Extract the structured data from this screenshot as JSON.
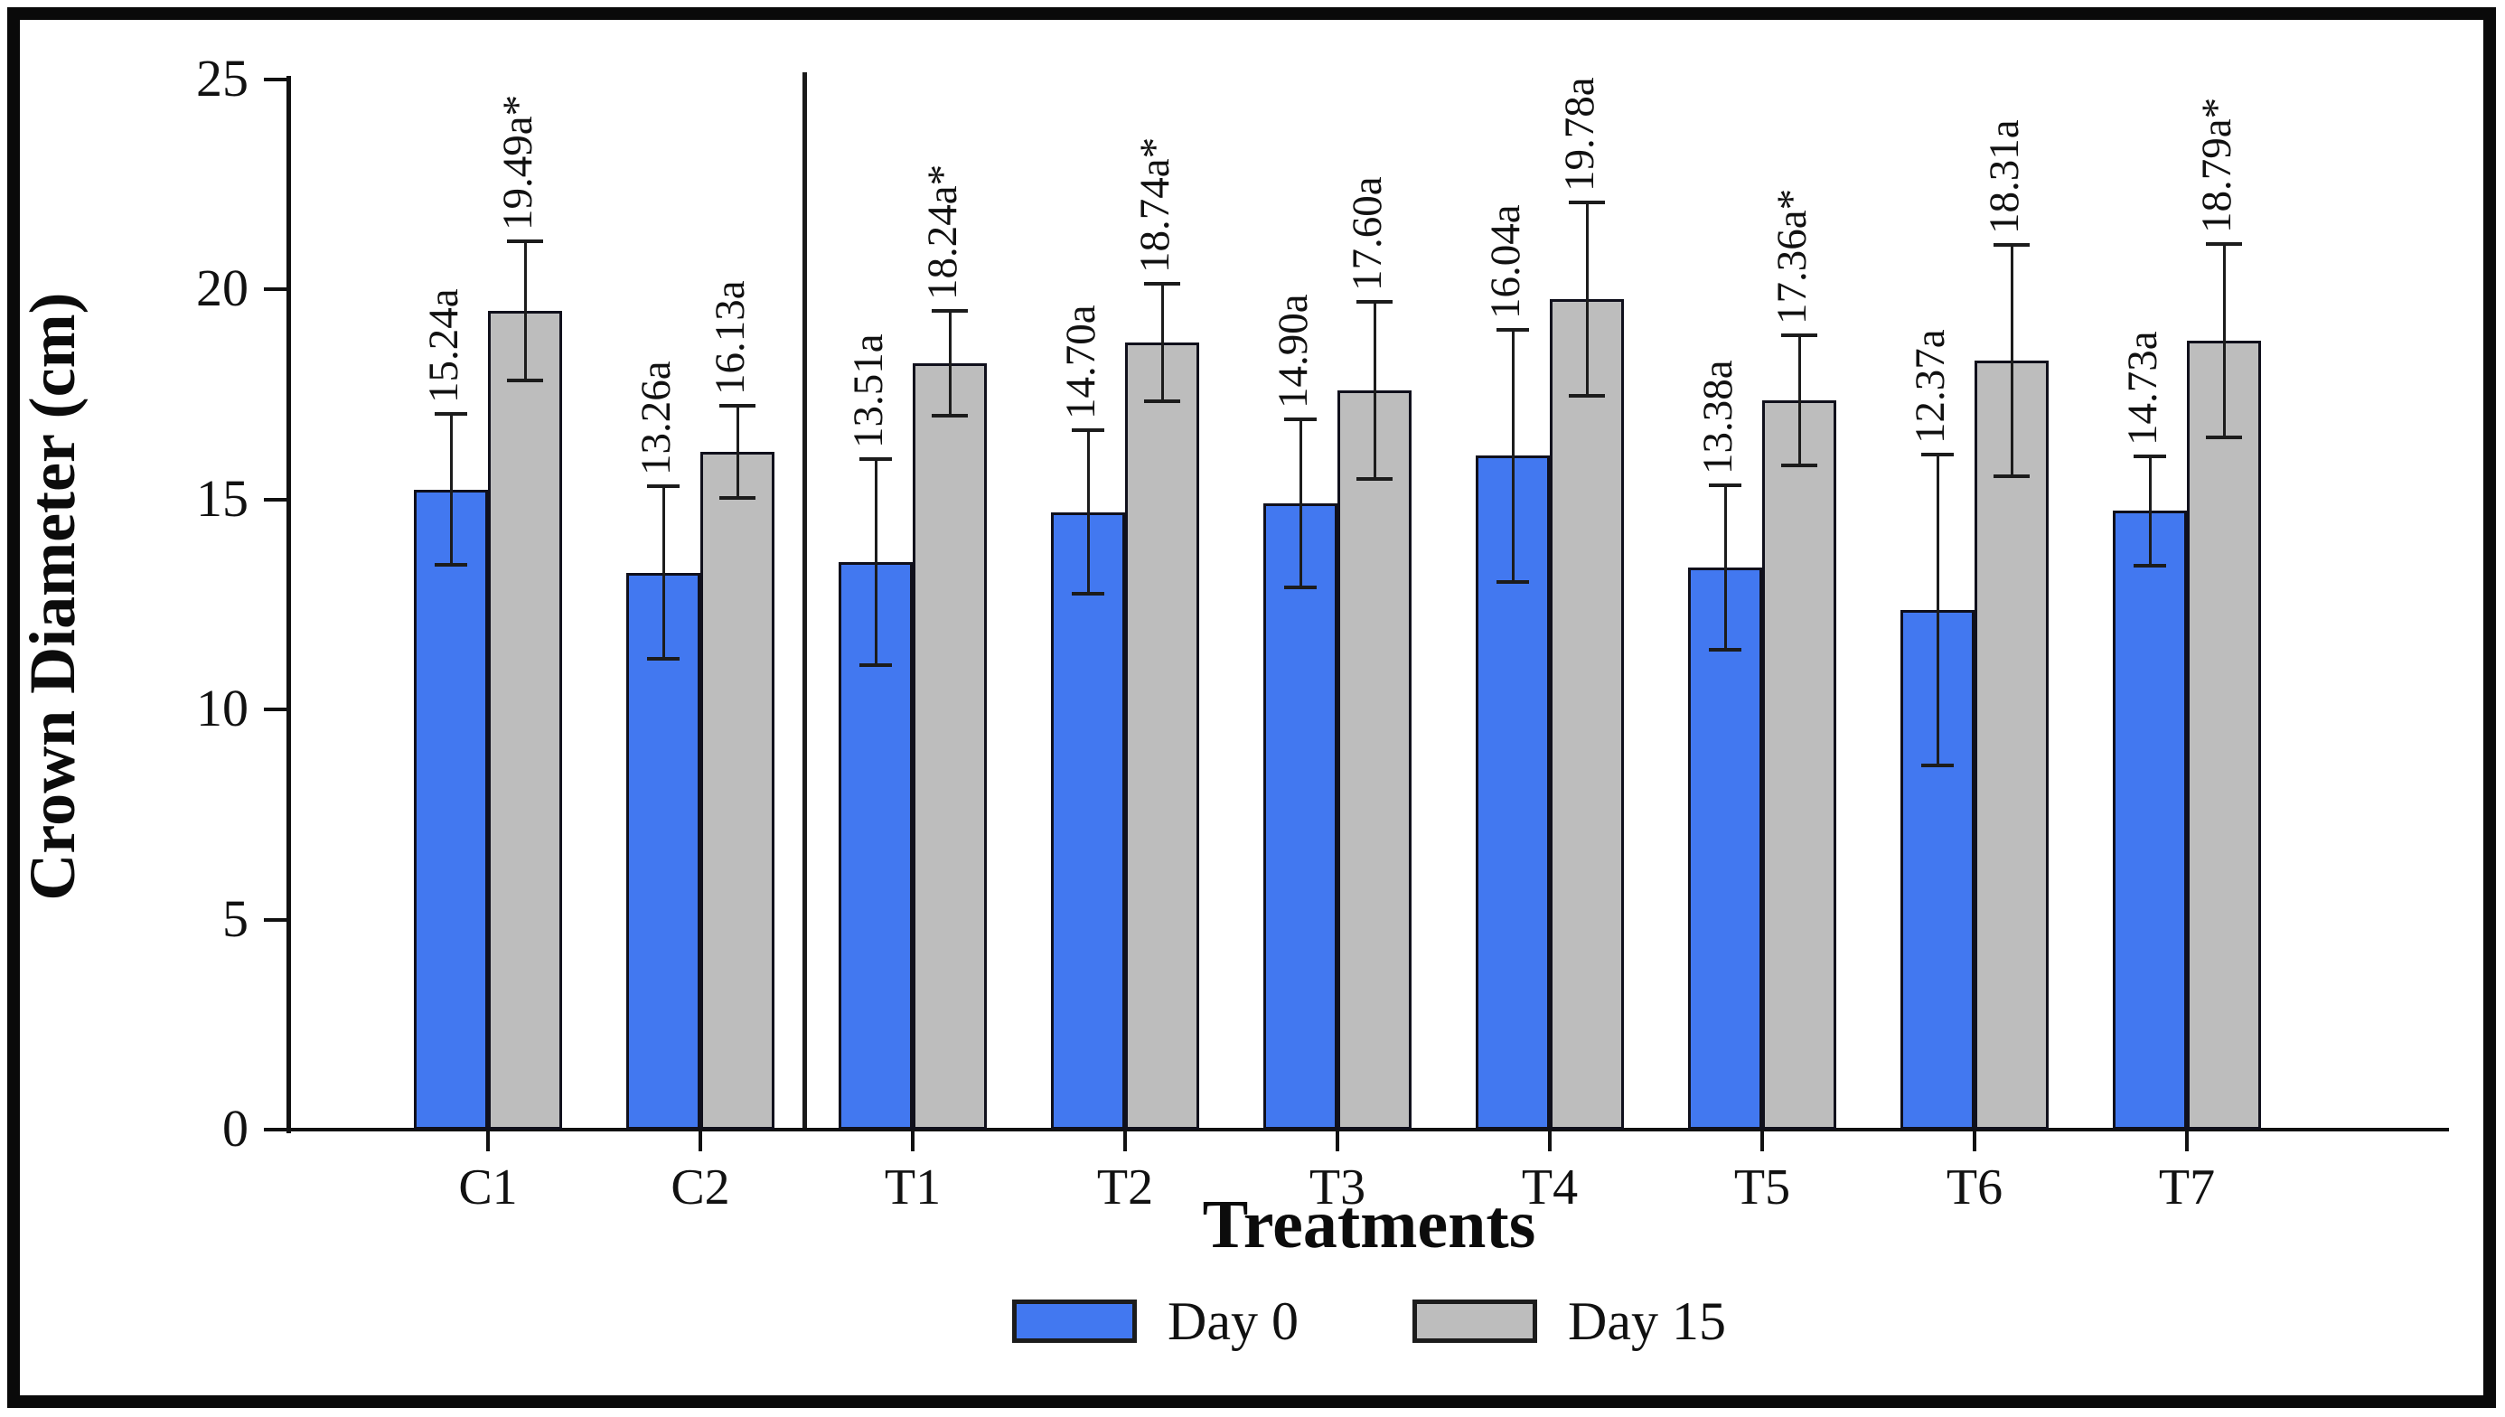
{
  "figure": {
    "y_axis_title": "Crown Diameter (cm)",
    "x_axis_title": "Treatments",
    "frame_color": "#0a0a0a",
    "axis_color": "#111111"
  },
  "chart_data": {
    "type": "bar",
    "title": "",
    "xlabel": "Treatments",
    "ylabel": "Crown Diameter (cm)",
    "ylim": [
      0,
      25
    ],
    "yticks": [
      0,
      5,
      10,
      15,
      20,
      25
    ],
    "grid": false,
    "legend_position": "bottom",
    "group_divider_after_category": "C2",
    "categories": [
      "C1",
      "C2",
      "T1",
      "T2",
      "T3",
      "T4",
      "T5",
      "T6",
      "T7"
    ],
    "series": [
      {
        "name": "Day 0",
        "color": "#4278f0",
        "values": [
          15.24,
          13.26,
          13.51,
          14.7,
          14.9,
          16.04,
          13.38,
          12.37,
          14.73
        ],
        "errors": [
          1.8,
          2.05,
          2.45,
          1.95,
          2.0,
          3.0,
          1.95,
          3.7,
          1.3
        ],
        "point_labels": [
          "15.24a",
          "13.26a",
          "13.51a",
          "14.70a",
          "14.90a",
          "16.04a",
          "13.38a",
          "12.37a",
          "14.73a"
        ]
      },
      {
        "name": "Day 15",
        "color": "#bdbdbd",
        "values": [
          19.49,
          16.13,
          18.24,
          18.74,
          17.6,
          19.78,
          17.36,
          18.31,
          18.79
        ],
        "errors": [
          1.65,
          1.1,
          1.25,
          1.4,
          2.1,
          2.3,
          1.55,
          2.75,
          2.3
        ],
        "point_labels": [
          "19.49a*",
          "16.13a",
          "18.24a*",
          "18.74a*",
          "17.60a",
          "19.78a",
          "17.36a*",
          "18.31a",
          "18.79a*"
        ]
      }
    ]
  }
}
